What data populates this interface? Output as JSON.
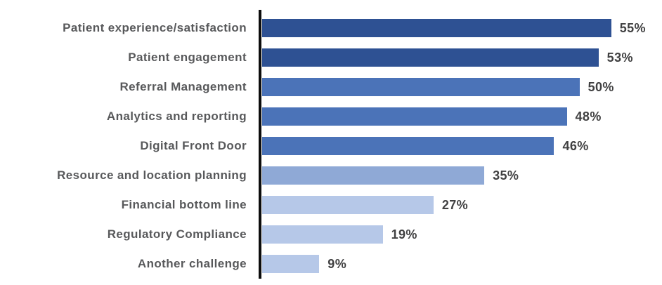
{
  "chart_data": {
    "type": "bar",
    "orientation": "horizontal",
    "title": "",
    "xlabel": "",
    "ylabel": "",
    "categories": [
      "Patient experience/satisfaction",
      "Patient engagement",
      "Referral Management",
      "Analytics and reporting",
      "Digital Front Door",
      "Resource and location planning",
      "Financial bottom line",
      "Regulatory Compliance",
      "Another challenge"
    ],
    "values": [
      55,
      53,
      50,
      48,
      46,
      35,
      27,
      19,
      9
    ],
    "value_labels": [
      "55%",
      "53%",
      "50%",
      "48%",
      "46%",
      "35%",
      "27%",
      "19%",
      "9%"
    ],
    "bar_colors": [
      "#2E5193",
      "#2E5193",
      "#4B73B8",
      "#4B73B8",
      "#4B73B8",
      "#8FA9D6",
      "#B6C8E8",
      "#B6C8E8",
      "#B6C8E8"
    ],
    "xlim": [
      0,
      63
    ],
    "grid": false,
    "legend": false,
    "axis_line_color": "#0D0D0D",
    "category_label_color": "#58595B",
    "value_label_color": "#414142",
    "background_color": "#FFFFFF"
  }
}
